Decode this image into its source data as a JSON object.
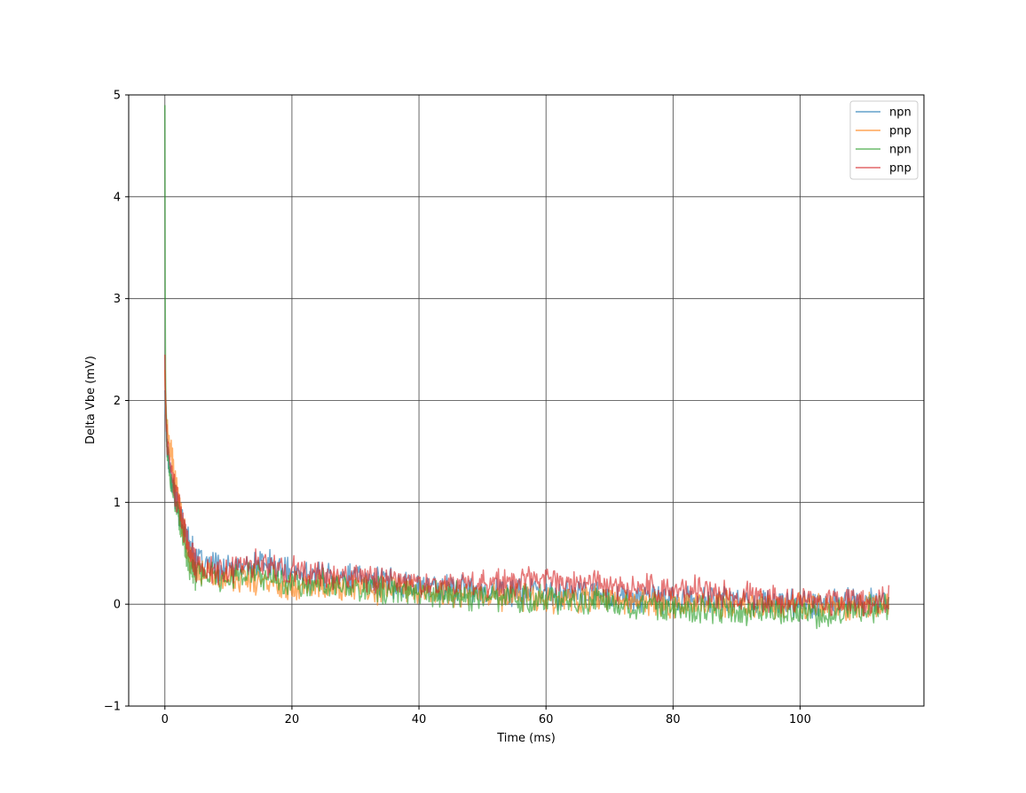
{
  "chart_data": {
    "type": "line",
    "title": "",
    "xlabel": "Time (ms)",
    "ylabel": "Delta Vbe (mV)",
    "xlim": [
      -5.7,
      119.5
    ],
    "ylim": [
      -1,
      5
    ],
    "xticks": [
      0,
      20,
      40,
      60,
      80,
      100
    ],
    "yticks": [
      -1,
      0,
      1,
      2,
      3,
      4,
      5
    ],
    "xtick_labels": [
      "0",
      "20",
      "40",
      "60",
      "80",
      "100"
    ],
    "ytick_labels": [
      "−1",
      "0",
      "1",
      "2",
      "3",
      "4",
      "5"
    ],
    "grid": true,
    "legend_position": "top-right",
    "series": [
      {
        "name": "npn",
        "color": "#1f77b4",
        "x": [
          0,
          0.1,
          0.3,
          0.6,
          1,
          1.5,
          2,
          3,
          4,
          5,
          7,
          10,
          13,
          16,
          20,
          25,
          30,
          35,
          40,
          45,
          50,
          55,
          60,
          65,
          70,
          75,
          80,
          85,
          90,
          95,
          100,
          105,
          110,
          114
        ],
        "y": [
          2.1,
          1.9,
          1.6,
          1.4,
          1.25,
          1.1,
          0.95,
          0.75,
          0.55,
          0.42,
          0.38,
          0.34,
          0.36,
          0.4,
          0.3,
          0.28,
          0.25,
          0.22,
          0.18,
          0.16,
          0.14,
          0.12,
          0.1,
          0.1,
          0.08,
          0.06,
          0.04,
          0.05,
          0.04,
          0.02,
          0.02,
          0.01,
          0.01,
          0.03
        ]
      },
      {
        "name": "pnp",
        "color": "#ff7f0e",
        "x": [
          0,
          0.1,
          0.3,
          0.6,
          1,
          1.5,
          2,
          3,
          4,
          5,
          7,
          10,
          13,
          16,
          20,
          25,
          30,
          35,
          40,
          45,
          50,
          55,
          60,
          65,
          70,
          75,
          80,
          85,
          90,
          95,
          100,
          105,
          110,
          114
        ],
        "y": [
          2.3,
          2.0,
          1.75,
          1.6,
          1.45,
          1.25,
          1.05,
          0.7,
          0.45,
          0.3,
          0.28,
          0.25,
          0.24,
          0.22,
          0.2,
          0.18,
          0.16,
          0.15,
          0.13,
          0.12,
          0.1,
          0.08,
          0.07,
          0.05,
          0.04,
          0.02,
          0.01,
          0.0,
          -0.01,
          -0.02,
          -0.02,
          -0.03,
          -0.02,
          0.0
        ]
      },
      {
        "name": "npn",
        "color": "#2ca02c",
        "x": [
          0,
          0.05,
          0.1,
          0.3,
          0.6,
          1,
          1.5,
          2,
          3,
          4,
          5,
          7,
          10,
          13,
          16,
          20,
          25,
          30,
          35,
          40,
          45,
          50,
          55,
          60,
          65,
          70,
          75,
          80,
          85,
          90,
          95,
          100,
          105,
          110,
          114
        ],
        "y": [
          4.9,
          3.2,
          2.2,
          1.6,
          1.35,
          1.2,
          1.05,
          0.9,
          0.6,
          0.35,
          0.28,
          0.27,
          0.28,
          0.3,
          0.26,
          0.22,
          0.2,
          0.18,
          0.14,
          0.1,
          0.08,
          0.07,
          0.06,
          0.05,
          0.04,
          0.02,
          0.0,
          -0.02,
          -0.05,
          -0.08,
          -0.07,
          -0.08,
          -0.12,
          -0.05,
          0.0
        ]
      },
      {
        "name": "pnp",
        "color": "#d62728",
        "x": [
          0,
          0.1,
          0.3,
          0.6,
          1,
          1.5,
          2,
          3,
          4,
          5,
          7,
          10,
          13,
          16,
          20,
          25,
          30,
          35,
          40,
          45,
          50,
          55,
          60,
          65,
          70,
          75,
          80,
          85,
          90,
          95,
          100,
          105,
          110,
          114
        ],
        "y": [
          2.45,
          1.95,
          1.6,
          1.45,
          1.3,
          1.15,
          1.0,
          0.75,
          0.5,
          0.38,
          0.32,
          0.33,
          0.4,
          0.38,
          0.32,
          0.28,
          0.26,
          0.24,
          0.22,
          0.2,
          0.2,
          0.22,
          0.24,
          0.2,
          0.18,
          0.16,
          0.14,
          0.13,
          0.08,
          0.05,
          0.04,
          0.03,
          0.02,
          0.04
        ]
      }
    ]
  }
}
